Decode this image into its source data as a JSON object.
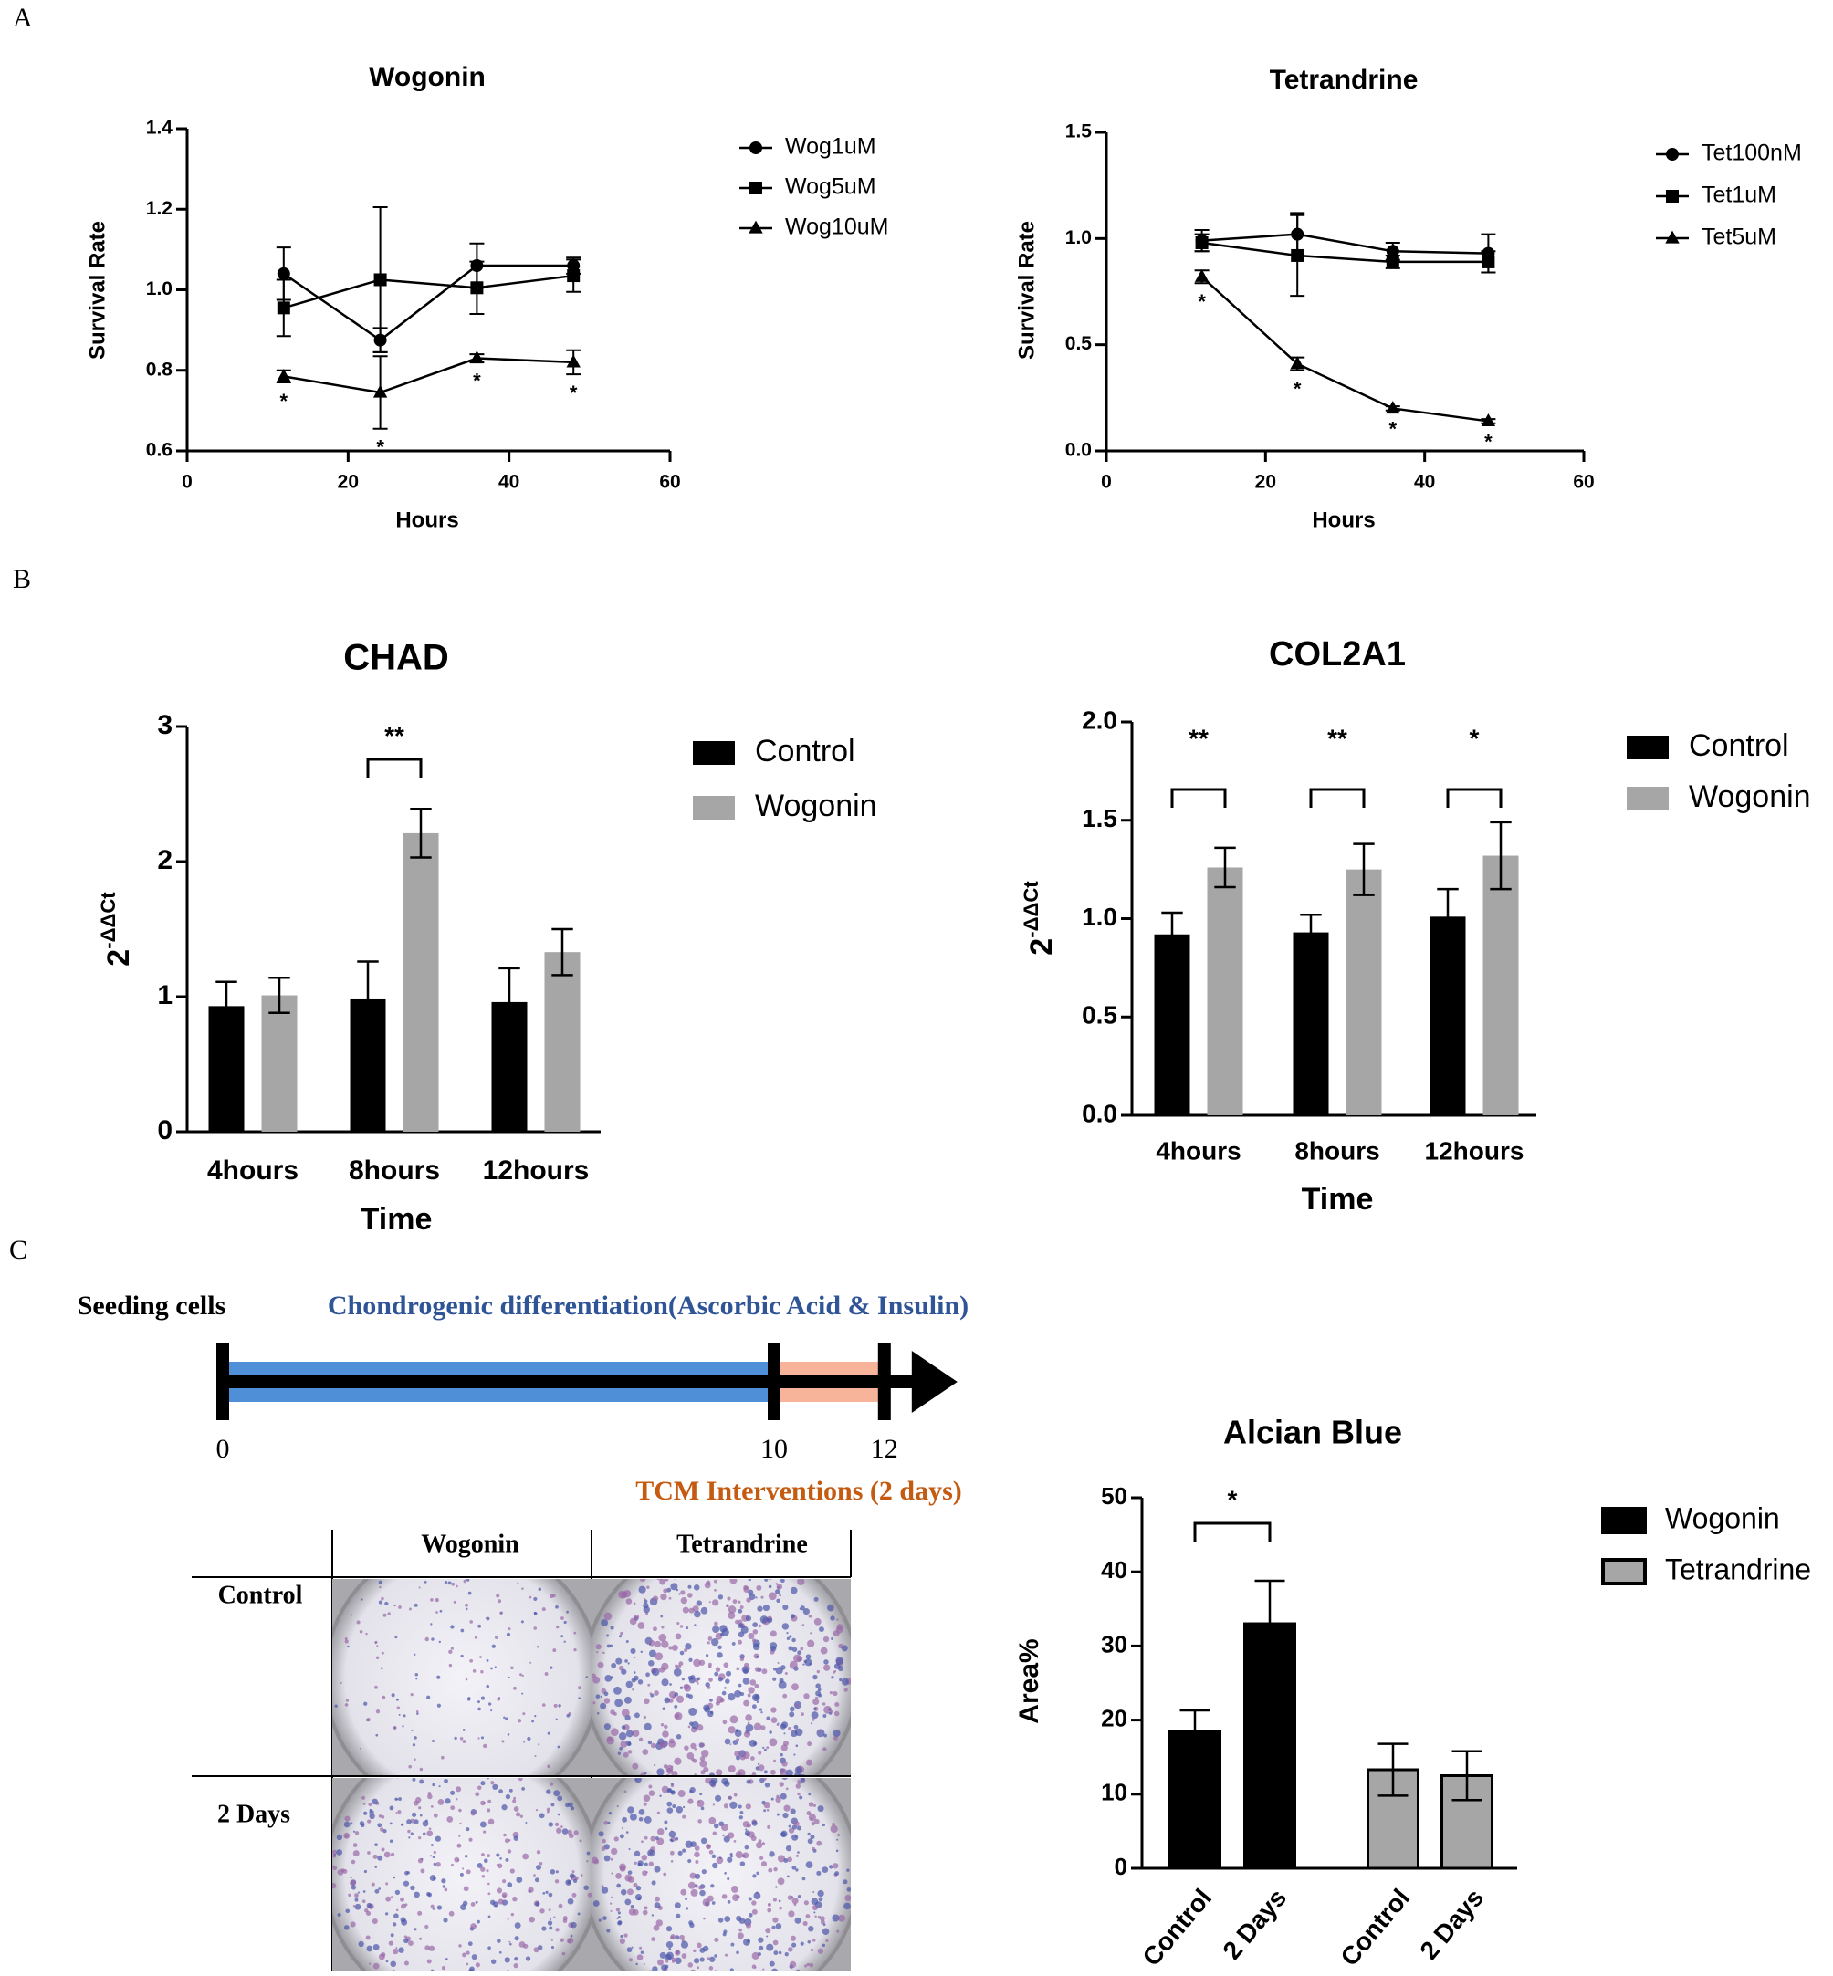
{
  "panel_labels": [
    "A",
    "B",
    "C"
  ],
  "chart_data": [
    {
      "type": "line",
      "title": "Wogonin",
      "xlabel": "Hours",
      "ylabel": "Survival Rate",
      "x": [
        12,
        24,
        36,
        48
      ],
      "xlim": [
        0,
        60
      ],
      "xticks": [
        0,
        20,
        40,
        60
      ],
      "ylim": [
        0.6,
        1.4
      ],
      "yticks": [
        0.6,
        0.8,
        {
          "value": 1.0,
          "label": "1.0"
        },
        1.2,
        1.4
      ],
      "series": [
        {
          "name": "Wog1uM",
          "color": "#000000",
          "marker": "circle",
          "values": [
            1.04,
            0.875,
            1.06,
            1.06
          ],
          "errors": [
            0.065,
            0.03,
            0.055,
            0.02
          ]
        },
        {
          "name": "Wog5uM",
          "color": "#000000",
          "marker": "square",
          "values": [
            0.955,
            1.025,
            1.005,
            1.035
          ],
          "errors": [
            0.07,
            0.18,
            0.065,
            0.04
          ]
        },
        {
          "name": "Wog10uM",
          "color": "#000000",
          "marker": "triangle",
          "values": [
            0.785,
            0.745,
            0.83,
            0.82
          ],
          "errors": [
            0.015,
            0.09,
            0.01,
            0.03
          ],
          "significance": [
            "*",
            "*",
            "*",
            "*"
          ]
        }
      ]
    },
    {
      "type": "line",
      "title": "Tetrandrine",
      "xlabel": "Hours",
      "ylabel": "Survival Rate",
      "x": [
        12,
        24,
        36,
        48
      ],
      "xlim": [
        0,
        60
      ],
      "xticks": [
        0,
        20,
        40,
        60
      ],
      "ylim": [
        0,
        1.5
      ],
      "yticks": [
        {
          "value": 0,
          "label": "0.0"
        },
        0.5,
        {
          "value": 1.0,
          "label": "1.0"
        },
        1.5
      ],
      "series": [
        {
          "name": "Tet100nM",
          "color": "#000000",
          "marker": "circle",
          "values": [
            0.99,
            1.02,
            0.94,
            0.93
          ],
          "errors": [
            0.05,
            0.1,
            0.04,
            0.09
          ]
        },
        {
          "name": "Tet1uM",
          "color": "#000000",
          "marker": "square",
          "values": [
            0.98,
            0.92,
            0.89,
            0.89
          ],
          "errors": [
            0.04,
            0.19,
            0.03,
            0.05
          ]
        },
        {
          "name": "Tet5uM",
          "color": "#000000",
          "marker": "triangle",
          "values": [
            0.82,
            0.41,
            0.2,
            0.14
          ],
          "errors": [
            0.03,
            0.03,
            0.01,
            0.01
          ],
          "significance": [
            "*",
            "*",
            "*",
            "*"
          ]
        }
      ]
    },
    {
      "type": "bar",
      "title": "CHAD",
      "xlabel": "Time",
      "ylabel": {
        "base": "2",
        "exponent": "-ΔΔCt"
      },
      "categories": [
        "4hours",
        "8hours",
        "12hours"
      ],
      "ylim": [
        0,
        3
      ],
      "yticks": [
        0,
        1,
        2,
        3
      ],
      "series": [
        {
          "name": "Control",
          "color": "#000000",
          "values": [
            0.93,
            0.98,
            0.96
          ],
          "errors": [
            0.18,
            0.28,
            0.25
          ]
        },
        {
          "name": "Wogonin",
          "color": "#a6a6a6",
          "values": [
            1.01,
            2.21,
            1.33
          ],
          "errors": [
            0.13,
            0.18,
            0.17
          ]
        }
      ],
      "significance": [
        null,
        "**",
        null
      ]
    },
    {
      "type": "bar",
      "title": "COL2A1",
      "xlabel": "Time",
      "ylabel": {
        "base": "2",
        "exponent": "-ΔΔCt"
      },
      "categories": [
        "4hours",
        "8hours",
        "12hours"
      ],
      "ylim": [
        0,
        2
      ],
      "yticks": [
        {
          "value": 0,
          "label": "0.0"
        },
        0.5,
        {
          "value": 1,
          "label": "1.0"
        },
        1.5,
        {
          "value": 2,
          "label": "2.0"
        }
      ],
      "series": [
        {
          "name": "Control",
          "color": "#000000",
          "values": [
            0.92,
            0.93,
            1.01
          ],
          "errors": [
            0.11,
            0.09,
            0.14
          ]
        },
        {
          "name": "Wogonin",
          "color": "#a6a6a6",
          "values": [
            1.26,
            1.25,
            1.32
          ],
          "errors": [
            0.1,
            0.13,
            0.17
          ]
        }
      ],
      "significance": [
        "**",
        "**",
        "*"
      ]
    },
    {
      "type": "bar",
      "title": "Alcian Blue",
      "ylabel": "Area%",
      "categories": [
        "Control",
        "2 Days",
        "Control",
        "2 Days"
      ],
      "ylim": [
        0,
        50
      ],
      "yticks": [
        0,
        10,
        20,
        30,
        40,
        50
      ],
      "series": [
        {
          "name": "Wogonin",
          "color": "#000000",
          "edgecolor": "#000000",
          "values": [
            18.5,
            33,
            null,
            null
          ],
          "errors": [
            2.8,
            5.8,
            null,
            null
          ]
        },
        {
          "name": "Tetrandrine",
          "color": "#a6a6a6",
          "edgecolor": "#000000",
          "values": [
            null,
            null,
            13.3,
            12.5
          ],
          "errors": [
            null,
            null,
            3.5,
            3.3
          ]
        }
      ],
      "brackets": [
        {
          "categories": [
            0,
            1
          ],
          "label": "*"
        }
      ]
    }
  ],
  "timeline": {
    "start_label": "Seeding cells",
    "phase1": "Chondrogenic differentiation(Ascorbic Acid & Insulin)",
    "phase2": "TCM Interventions (2 days)",
    "ticks": [
      0,
      10,
      12
    ]
  },
  "stain_table": {
    "columns": [
      "Wogonin",
      "Tetrandrine"
    ],
    "rows": [
      "Control",
      "2 Days"
    ]
  }
}
